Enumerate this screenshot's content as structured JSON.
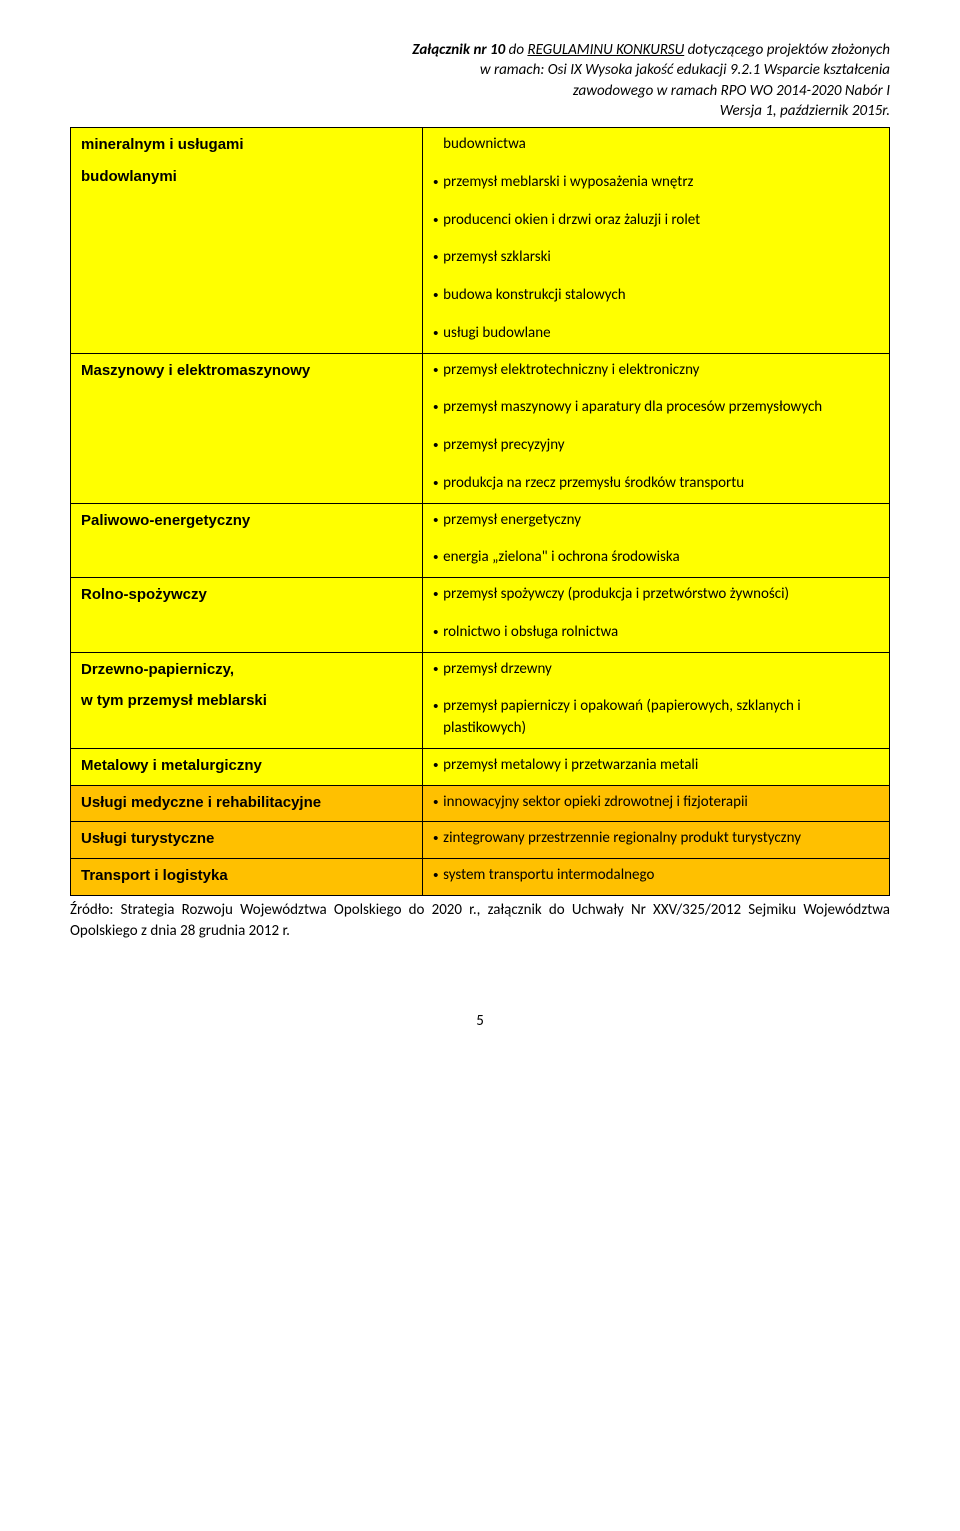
{
  "header": {
    "line1_pre": "Załącznik nr 10",
    "line1_mid": " do ",
    "line1_under": "REGULAMINU KONKURSU",
    "line1_post": " dotyczącego projektów złożonych",
    "line2": "w ramach: Osi IX Wysoka jakość edukacji 9.2.1 Wsparcie kształcenia",
    "line3": "zawodowego w ramach RPO WO 2014-2020 Nabór I",
    "line4": "Wersja 1, październik 2015r."
  },
  "rows": [
    {
      "color": "yellow",
      "left_lines": [
        "mineralnym i usługami",
        "",
        "budowlanymi"
      ],
      "right": [
        "budownictwa",
        "przemysł meblarski i wyposażenia wnętrz",
        "producenci okien i drzwi oraz żaluzji i rolet",
        "przemysł szklarski",
        "budowa konstrukcji stalowych",
        "usługi budowlane"
      ],
      "suppress_first_bullet": true
    },
    {
      "color": "yellow",
      "left_lines": [
        "Maszynowy i elektromaszynowy"
      ],
      "right": [
        "przemysł elektrotechniczny i elektroniczny",
        "przemysł maszynowy i aparatury dla procesów przemysłowych",
        "przemysł precyzyjny",
        "produkcja na rzecz przemysłu środków transportu"
      ]
    },
    {
      "color": "yellow",
      "left_lines": [
        "Paliwowo-energetyczny"
      ],
      "right": [
        "przemysł energetyczny",
        "energia „zielona\" i ochrona środowiska"
      ]
    },
    {
      "color": "yellow",
      "left_lines": [
        "Rolno-spożywczy"
      ],
      "right": [
        "przemysł spożywczy (produkcja i przetwórstwo żywności)",
        "rolnictwo i obsługa rolnictwa"
      ]
    },
    {
      "color": "yellow",
      "left_lines": [
        "Drzewno-papierniczy,",
        "",
        "w tym przemysł meblarski"
      ],
      "right": [
        "przemysł drzewny",
        "przemysł papierniczy i opakowań (papierowych, szklanych i plastikowych)"
      ]
    },
    {
      "color": "yellow",
      "left_lines": [
        "Metalowy i metalurgiczny"
      ],
      "right": [
        "przemysł metalowy i przetwarzania metali"
      ]
    },
    {
      "color": "orange",
      "left_lines": [
        "Usługi medyczne i rehabilitacyjne"
      ],
      "right": [
        "innowacyjny sektor opieki zdrowotnej i fizjoterapii"
      ]
    },
    {
      "color": "orange",
      "left_lines": [
        "Usługi turystyczne"
      ],
      "right": [
        "zintegrowany przestrzennie regionalny produkt turystyczny"
      ]
    },
    {
      "color": "orange",
      "left_lines": [
        "Transport i logistyka"
      ],
      "right": [
        "system transportu intermodalnego"
      ]
    }
  ],
  "source": "Źródło: Strategia Rozwoju Województwa Opolskiego do 2020 r., załącznik do Uchwały Nr XXV/325/2012 Sejmiku Województwa Opolskiego z dnia 28 grudnia 2012 r.",
  "page_number": "5",
  "colors": {
    "yellow": "#ffff00",
    "orange": "#ffc000",
    "border": "#000000",
    "background": "#ffffff"
  }
}
